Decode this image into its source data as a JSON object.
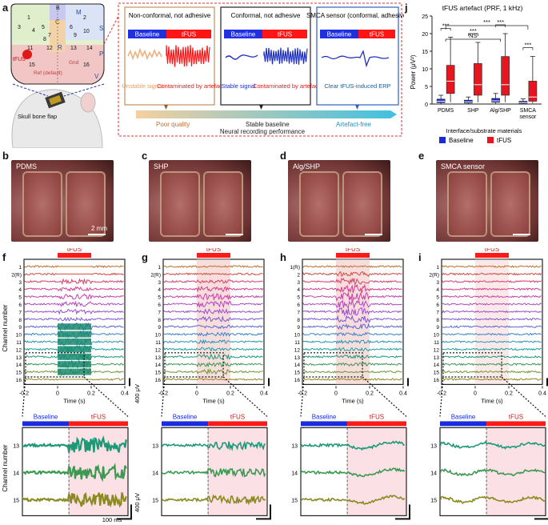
{
  "panels": {
    "a": "a",
    "b": "b",
    "c": "c",
    "d": "d",
    "e": "e",
    "f": "f",
    "g": "g",
    "h": "h",
    "i": "i",
    "j": "j"
  },
  "panel_a": {
    "regions": [
      "M",
      "C",
      "S",
      "R",
      "P",
      "V",
      "M"
    ],
    "channels": [
      "1",
      "2",
      "3",
      "4",
      "5",
      "6",
      "7",
      "8",
      "9",
      "10",
      "11",
      "12",
      "13",
      "14",
      "15",
      "16",
      "B"
    ],
    "labels": {
      "tfus": "tFUS",
      "ref": "Ref (default)",
      "gnd": "Gnd",
      "skull": "Skull bone flap"
    },
    "boxes": [
      {
        "title": "Non-conformal, not adhesive",
        "baseline": "Baseline",
        "tfus": "tFUS",
        "left_caption": "Unstable signal",
        "right_caption": "Contaminated by artefact"
      },
      {
        "title": "Conformal, not adhesive",
        "baseline": "Baseline",
        "tfus": "tFUS",
        "left_caption": "Stable signal",
        "right_caption": "Contaminated by artefact"
      },
      {
        "title": "SMCA sensor (conformal, adhesive)",
        "baseline": "Baseline",
        "tfus": "tFUS",
        "left_caption": "Clear tFUS-induced ERP",
        "right_caption": ""
      }
    ],
    "arrow": {
      "poor": "Poor quality",
      "stable": "Stable baseline",
      "free": "Artefact-free",
      "axis": "Neural recording  performance"
    }
  },
  "photos": [
    {
      "caption": "PDMS",
      "scale": "2 mm"
    },
    {
      "caption": "SHP",
      "scale": ""
    },
    {
      "caption": "Alg/SHP",
      "scale": ""
    },
    {
      "caption": "SMCA sensor",
      "scale": ""
    }
  ],
  "traces": {
    "tfus": "tFUS",
    "baseline": "Baseline",
    "ylabel": "Channel number",
    "xlabel": "Time (s)",
    "xticks": [
      "-0.2",
      "0",
      "0.2",
      "0.4"
    ],
    "scale_v": "400 μV",
    "scale_t": "100 ms",
    "f_labels": [
      "1",
      "2(R)",
      "3",
      "4",
      "5",
      "6",
      "7",
      "8",
      "9",
      "10",
      "11",
      "12",
      "13",
      "14",
      "15",
      "16"
    ],
    "h_labels": [
      "1(R)",
      "2",
      "3",
      "4",
      "5",
      "6",
      "7",
      "8",
      "9",
      "10",
      "11",
      "12",
      "13",
      "14",
      "15",
      "16"
    ],
    "zoom_labels": [
      "13",
      "14",
      "15"
    ]
  },
  "chart_data": {
    "type": "bar",
    "title": "tFUS artefact (PRF, 1 kHz)",
    "ylabel": "Power (μV²)",
    "xlabel": "Interface/substrate materials",
    "ylim": [
      0,
      25
    ],
    "yticks": [
      "0",
      "5",
      "10",
      "15",
      "20",
      "25"
    ],
    "categories": [
      "PDMS",
      "SHP",
      "Alg/SHP",
      "SMCA sensor"
    ],
    "series": [
      {
        "name": "Baseline",
        "color": "#1a2bd6",
        "median": [
          0.8,
          0.6,
          0.9,
          0.4
        ],
        "q1": [
          0.4,
          0.3,
          0.5,
          0.2
        ],
        "q3": [
          1.4,
          1.1,
          1.6,
          0.8
        ],
        "min": [
          0.1,
          0.1,
          0.1,
          0.05
        ],
        "max": [
          2.5,
          2.0,
          3.0,
          1.5
        ]
      },
      {
        "name": "tFUS",
        "color": "#e8141e",
        "median": [
          6.5,
          5.5,
          5.5,
          2.0
        ],
        "q1": [
          3.0,
          2.5,
          2.5,
          0.8
        ],
        "q3": [
          11.0,
          11.5,
          13.5,
          6.5
        ],
        "min": [
          0.5,
          0.5,
          0.5,
          0.2
        ],
        "max": [
          19.0,
          17.5,
          20.0,
          13.5
        ]
      }
    ],
    "annotations": [
      "***",
      "***",
      "***",
      "***",
      "NS",
      "***"
    ],
    "legend": [
      "Baseline",
      "tFUS"
    ]
  }
}
